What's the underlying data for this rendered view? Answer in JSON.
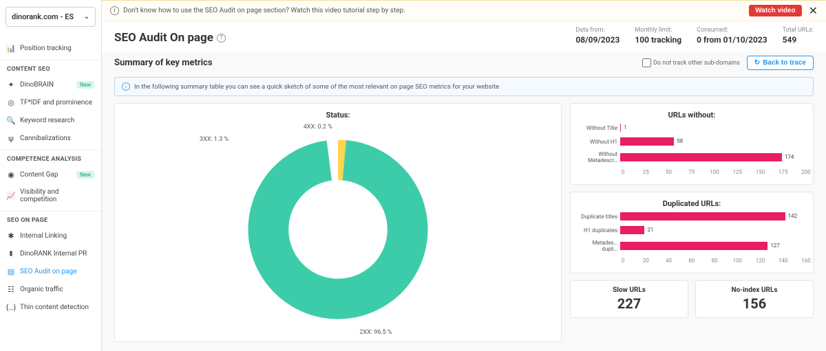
{
  "sidebar": {
    "domain": "dinorank.com - ES",
    "position_tracking": "Position tracking",
    "sections": {
      "content_seo": "CONTENT SEO",
      "competence": "COMPETENCE ANALYSIS",
      "seo_on_page": "SEO ON PAGE"
    },
    "items": {
      "dinobrain": "DinoBRAIN",
      "tfidf": "TF*IDF and prominence",
      "keyword": "Keyword research",
      "cannibal": "Cannibalizations",
      "content_gap": "Content Gap",
      "visibility": "Visibility and competition",
      "internal_linking": "Internal Linking",
      "internal_pr": "DinoRANK Internal PR",
      "seo_audit": "SEO Audit on page",
      "organic": "Organic traffic",
      "thin": "Thin content detection"
    },
    "badge_new": "New"
  },
  "top_banner": {
    "text": "Don't know how to use the SEO Audit on page section? Watch this video tutorial step by step.",
    "watch_video": "Watch video"
  },
  "header": {
    "title": "SEO Audit On page",
    "stats": [
      {
        "label": "Data from:",
        "value": "08/09/2023"
      },
      {
        "label": "Monthly limit:",
        "value": "100 tracking"
      },
      {
        "label": "Consumed:",
        "value": "0 from 01/10/2023"
      },
      {
        "label": "Total URLs:",
        "value": "549"
      }
    ]
  },
  "summary": {
    "title": "Summary of key metrics",
    "checkbox": "Do not track other sub-domains",
    "back_btn": "Back to trace",
    "info_bar": "In the following summary table you can see a quick sketch of some of the most relevant on page SEO metrics for your website"
  },
  "status_chart": {
    "title": "Status:",
    "type": "donut",
    "segments": [
      {
        "name": "2XX",
        "value": 96.5,
        "color": "#3dccaa",
        "label": "2XX: 96.5 %"
      },
      {
        "name": "3XX",
        "value": 1.3,
        "color": "#ffd54f",
        "label": "3XX: 1.3 %"
      },
      {
        "name": "4XX",
        "value": 0.2,
        "color": "#c6d84e",
        "label": "4XX: 0.2 %"
      }
    ],
    "inner_radius_pct": 55,
    "background_color": "#ffffff",
    "label_fontsize": 9
  },
  "urls_without": {
    "title": "URLs without:",
    "type": "bar",
    "xmax": 200,
    "xticks": [
      0,
      25,
      50,
      75,
      100,
      125,
      150,
      175,
      200
    ],
    "bar_color": "#e91e63",
    "rows": [
      {
        "label": "Without Title",
        "value": 1
      },
      {
        "label": "Without H1",
        "value": 58
      },
      {
        "label": "Without Metadescr…",
        "value": 174
      }
    ]
  },
  "duplicated": {
    "title": "Duplicated URLs:",
    "type": "bar",
    "xmax": 160,
    "xticks": [
      0,
      20,
      40,
      60,
      80,
      100,
      120,
      140,
      160
    ],
    "bar_color": "#e91e63",
    "rows": [
      {
        "label": "Duplicate titles",
        "value": 142
      },
      {
        "label": "H1 duplicates",
        "value": 21
      },
      {
        "label": "Metades… dupli…",
        "value": 127
      }
    ]
  },
  "bottom_stats": {
    "slow": {
      "title": "Slow URLs",
      "value": "227"
    },
    "noindex": {
      "title": "No-index URLs",
      "value": "156"
    }
  },
  "colors": {
    "accent_blue": "#2196f3",
    "accent_red": "#e53935",
    "bar_pink": "#e91e63",
    "donut_green": "#3dccaa"
  }
}
